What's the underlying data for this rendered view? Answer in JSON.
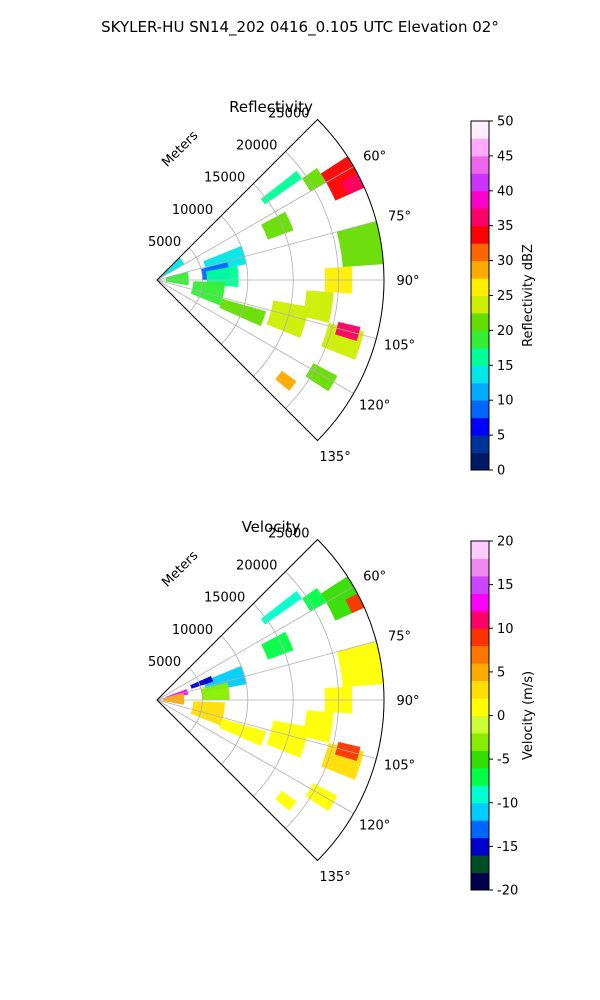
{
  "figure": {
    "suptitle": "SKYLER-HU  SN14_202  0416_0.105 UTC Elevation 02°"
  },
  "chart_data": [
    {
      "type": "heatmap",
      "title": "Reflectivity",
      "projection": "polar-sector",
      "azimuth_range_deg": [
        45,
        135
      ],
      "radial_label": "Meters",
      "range_ticks": [
        "5000",
        "10000",
        "15000",
        "20000",
        "25000"
      ],
      "range_tick_values": [
        5000,
        10000,
        15000,
        20000,
        25000
      ],
      "range_max_m": 25000,
      "azimuth_ticks": [
        "60°",
        "75°",
        "90°",
        "105°",
        "120°",
        "135°"
      ],
      "azimuth_tick_values": [
        60,
        75,
        90,
        105,
        120,
        135
      ],
      "grid": true,
      "colorbar": {
        "label": "Reflectivity dBZ",
        "min": 0,
        "max": 50,
        "ticks": [
          "0",
          "5",
          "10",
          "15",
          "20",
          "25",
          "30",
          "35",
          "40",
          "45",
          "50"
        ],
        "tick_values": [
          0,
          5,
          10,
          15,
          20,
          25,
          30,
          35,
          40,
          45,
          50
        ],
        "colors": [
          "#001a66",
          "#003399",
          "#0000ff",
          "#0066ff",
          "#00aaff",
          "#00e5e5",
          "#00ff99",
          "#33ee33",
          "#66dd00",
          "#ccee00",
          "#ffee00",
          "#ffaa00",
          "#ff6600",
          "#ff0000",
          "#ff0066",
          "#ff00cc",
          "#cc33ff",
          "#ee66ee",
          "#ffaaff",
          "#ffeeff"
        ]
      },
      "echoes": [
        {
          "az": [
            57,
            66
          ],
          "r": [
            21500,
            25000
          ],
          "value": 33
        },
        {
          "az": [
            62,
            66
          ],
          "r": [
            23000,
            25000
          ],
          "value": 37
        },
        {
          "az": [
            55,
            60
          ],
          "r": [
            19500,
            21500
          ],
          "value": 22
        },
        {
          "az": [
            52,
            55
          ],
          "r": [
            14500,
            19500
          ],
          "value": 17
        },
        {
          "az": [
            62,
            70
          ],
          "r": [
            13000,
            16000
          ],
          "value": 20
        },
        {
          "az": [
            68,
            80
          ],
          "r": [
            5500,
            10000
          ],
          "value": 13
        },
        {
          "az": [
            76,
            90
          ],
          "r": [
            5000,
            8000
          ],
          "value": 8
        },
        {
          "az": [
            80,
            95
          ],
          "r": [
            5500,
            9000
          ],
          "value": 16
        },
        {
          "az": [
            45,
            60
          ],
          "r": [
            300,
            3500
          ],
          "value": 14
        },
        {
          "az": [
            75,
            100
          ],
          "r": [
            1000,
            3500
          ],
          "value": 19
        },
        {
          "az": [
            92,
            112
          ],
          "r": [
            4000,
            7500
          ],
          "value": 19
        },
        {
          "az": [
            106,
            114
          ],
          "r": [
            7500,
            12500
          ],
          "value": 21
        },
        {
          "az": [
            100,
            112
          ],
          "r": [
            13000,
            17000
          ],
          "value": 23
        },
        {
          "az": [
            94,
            104
          ],
          "r": [
            16500,
            19500
          ],
          "value": 23
        },
        {
          "az": [
            86,
            94
          ],
          "r": [
            18500,
            21500
          ],
          "value": 25
        },
        {
          "az": [
            75,
            86
          ],
          "r": [
            20500,
            25000
          ],
          "value": 22
        },
        {
          "az": [
            104,
            112
          ],
          "r": [
            19500,
            23500
          ],
          "value": 24
        },
        {
          "az": [
            103,
            107
          ],
          "r": [
            20500,
            23000
          ],
          "value": 36
        },
        {
          "az": [
            118,
            123
          ],
          "r": [
            19500,
            22500
          ],
          "value": 20
        },
        {
          "az": [
            126,
            130
          ],
          "r": [
            17000,
            19000
          ],
          "value": 29
        }
      ]
    },
    {
      "type": "heatmap",
      "title": "Velocity",
      "projection": "polar-sector",
      "azimuth_range_deg": [
        45,
        135
      ],
      "radial_label": "Meters",
      "range_ticks": [
        "5000",
        "10000",
        "15000",
        "20000",
        "25000"
      ],
      "range_tick_values": [
        5000,
        10000,
        15000,
        20000,
        25000
      ],
      "range_max_m": 25000,
      "azimuth_ticks": [
        "60°",
        "75°",
        "90°",
        "105°",
        "120°",
        "135°"
      ],
      "azimuth_tick_values": [
        60,
        75,
        90,
        105,
        120,
        135
      ],
      "grid": true,
      "colorbar": {
        "label": "Velocity (m/s)",
        "min": -20,
        "max": 20,
        "ticks": [
          "-20",
          "-15",
          "-10",
          "-5",
          "0",
          "5",
          "10",
          "15",
          "20"
        ],
        "tick_values": [
          -20,
          -15,
          -10,
          -5,
          0,
          5,
          10,
          15,
          20
        ],
        "colors": [
          "#00004d",
          "#004d26",
          "#0000cc",
          "#0066ff",
          "#00ccff",
          "#00ffcc",
          "#00ff44",
          "#33dd00",
          "#88ee00",
          "#ccff33",
          "#ffff00",
          "#ffdd00",
          "#ffaa00",
          "#ff7700",
          "#ff3300",
          "#ff0066",
          "#ff00ff",
          "#cc44ff",
          "#ee88ee",
          "#ffccff"
        ]
      },
      "echoes": [
        {
          "az": [
            57,
            66
          ],
          "r": [
            21500,
            25000
          ],
          "value": -5
        },
        {
          "az": [
            62,
            66
          ],
          "r": [
            23500,
            25000
          ],
          "value": 9
        },
        {
          "az": [
            55,
            60
          ],
          "r": [
            19500,
            21500
          ],
          "value": -8
        },
        {
          "az": [
            52,
            55
          ],
          "r": [
            14500,
            19500
          ],
          "value": -10
        },
        {
          "az": [
            62,
            70
          ],
          "r": [
            13000,
            16000
          ],
          "value": -7
        },
        {
          "az": [
            68,
            80
          ],
          "r": [
            5500,
            10000
          ],
          "value": -11
        },
        {
          "az": [
            76,
            90
          ],
          "r": [
            5000,
            8000
          ],
          "value": -4
        },
        {
          "az": [
            66,
            72
          ],
          "r": [
            4000,
            6500
          ],
          "value": -15
        },
        {
          "az": [
            70,
            80
          ],
          "r": [
            1000,
            3500
          ],
          "value": 13
        },
        {
          "az": [
            75,
            100
          ],
          "r": [
            700,
            3000
          ],
          "value": 5
        },
        {
          "az": [
            92,
            112
          ],
          "r": [
            4000,
            7500
          ],
          "value": 2
        },
        {
          "az": [
            106,
            114
          ],
          "r": [
            7500,
            12500
          ],
          "value": 1
        },
        {
          "az": [
            100,
            112
          ],
          "r": [
            13000,
            17000
          ],
          "value": 1
        },
        {
          "az": [
            94,
            104
          ],
          "r": [
            16500,
            19500
          ],
          "value": 0
        },
        {
          "az": [
            86,
            94
          ],
          "r": [
            18500,
            21500
          ],
          "value": 1
        },
        {
          "az": [
            75,
            86
          ],
          "r": [
            20500,
            25000
          ],
          "value": 1
        },
        {
          "az": [
            104,
            112
          ],
          "r": [
            19500,
            23500
          ],
          "value": 2
        },
        {
          "az": [
            103,
            107
          ],
          "r": [
            20500,
            23000
          ],
          "value": 8
        },
        {
          "az": [
            118,
            123
          ],
          "r": [
            19500,
            22500
          ],
          "value": 1
        },
        {
          "az": [
            126,
            130
          ],
          "r": [
            17000,
            19000
          ],
          "value": 1
        }
      ]
    }
  ]
}
